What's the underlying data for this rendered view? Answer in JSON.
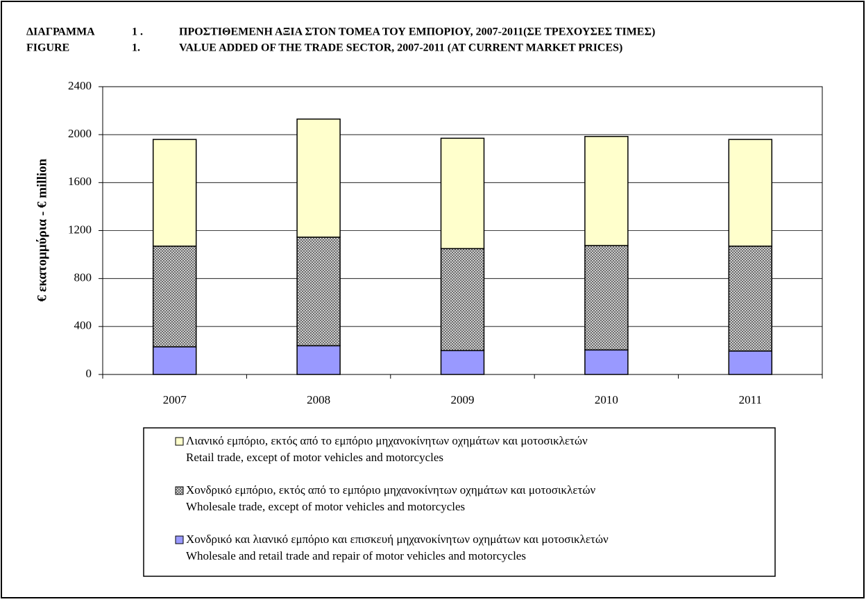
{
  "chart_data": {
    "type": "stacked_bar",
    "title_lines": [
      [
        "ΔΙΑΓΡΑΜΜΑ",
        "1 .",
        "ΠΡΟΣΤΙΘΕΜΕΝΗ ΑΞΙΑ ΣΤΟΝ ΤΟΜΕΑ ΤΟΥ ΕΜΠΟΡΙΟΥ, 2007-2011(ΣΕ ΤΡΕΧΟΥΣΕΣ ΤΙΜΕΣ)"
      ],
      [
        "FIGURE",
        "1.",
        "VALUE ADDED OF THE TRADE SECTOR, 2007-2011  (AT CURRENT MARKET PRICES)"
      ]
    ],
    "y_label": "€ εκατομμύρια - € million",
    "categories": [
      "2007",
      "2008",
      "2009",
      "2010",
      "2011"
    ],
    "series": [
      {
        "name": "Χονδρικό και λιανικό εμπόριο και επισκευή μηχανοκίνητων οχημάτων και μοτοσικλετών",
        "name_en": "Wholesale and retail trade and repair of motor vehicles and motorcycles",
        "color": "#9999ff",
        "values": [
          230,
          240,
          200,
          205,
          195
        ]
      },
      {
        "name": "Χονδρικό εμπόριο, εκτός από το εμπόριο μηχανοκίνητων οχημάτων και μοτοσικλετών",
        "name_en": "Wholesale trade, except of motor vehicles and motorcycles",
        "color": "#c0c0c0",
        "pattern": "crosshatch",
        "values": [
          840,
          905,
          850,
          870,
          875
        ]
      },
      {
        "name": "Λιανικό εμπόριο, εκτός από το εμπόριο μηχανοκίνητων οχημάτων και μοτοσικλετών",
        "name_en": "Retail trade, except of motor vehicles and motorcycles",
        "color": "#ffffcc",
        "values": [
          890,
          985,
          920,
          910,
          890
        ]
      }
    ],
    "ylim": [
      0,
      2400
    ],
    "yticks": [
      0,
      400,
      800,
      1200,
      1600,
      2000,
      2400
    ],
    "grid": true
  }
}
